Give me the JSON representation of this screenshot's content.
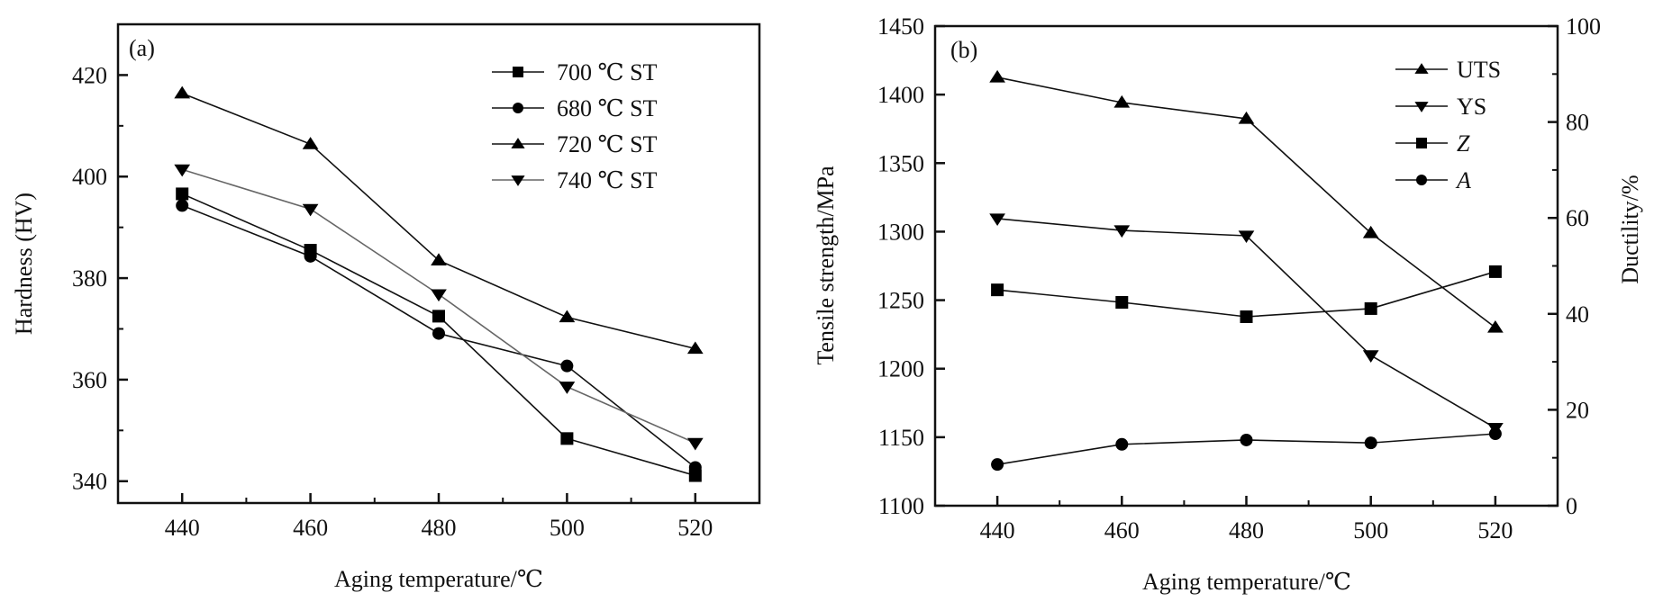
{
  "chart_data": [
    {
      "type": "line",
      "panel_label": "(a)",
      "xlabel": "Aging temperature/℃",
      "ylabel": "Hardness (HV)",
      "xlim": [
        430,
        530
      ],
      "ylim": [
        335.7,
        430
      ],
      "x_ticks": [
        440,
        460,
        480,
        500,
        520
      ],
      "x_tick_labels": [
        "440",
        "460",
        "480",
        "500",
        "520"
      ],
      "x_minor_ticks": [
        450,
        470,
        490,
        510
      ],
      "y_ticks": [
        340,
        360,
        380,
        400,
        420
      ],
      "y_tick_labels": [
        "340",
        "360",
        "380",
        "400",
        "420"
      ],
      "y_minor_ticks": [
        350,
        370,
        390,
        410
      ],
      "grid": false,
      "legend_position": "top-right",
      "x": [
        440,
        460,
        480,
        500,
        520
      ],
      "series": [
        {
          "name": "700 ℃ ST",
          "marker": "square",
          "color": "#111111",
          "values": [
            396.6,
            385.5,
            372.5,
            348.4,
            341.1
          ]
        },
        {
          "name": "680 ℃ ST",
          "marker": "circle",
          "color": "#111111",
          "values": [
            394.3,
            384.3,
            369.1,
            362.7,
            342.7
          ]
        },
        {
          "name": "720 ℃ ST",
          "marker": "triangle-up",
          "color": "#111111",
          "values": [
            416.4,
            406.4,
            383.5,
            372.3,
            366.1
          ]
        },
        {
          "name": "740 ℃ ST",
          "marker": "triangle-down",
          "color": "#666666",
          "values": [
            401.4,
            393.6,
            376.8,
            358.6,
            347.5
          ]
        }
      ]
    },
    {
      "type": "line",
      "panel_label": "(b)",
      "xlabel": "Aging temperature/℃",
      "ylabel": "Tensile strength/MPa",
      "ylabel_right": "Ductility/%",
      "xlim": [
        430,
        530
      ],
      "ylim": [
        1100,
        1450
      ],
      "ylim_right": [
        0,
        100
      ],
      "x_ticks": [
        440,
        460,
        480,
        500,
        520
      ],
      "x_tick_labels": [
        "440",
        "460",
        "480",
        "500",
        "520"
      ],
      "x_minor_ticks": [
        450,
        470,
        490,
        510
      ],
      "y_ticks": [
        1100,
        1150,
        1200,
        1250,
        1300,
        1350,
        1400,
        1450
      ],
      "y_tick_labels": [
        "1100",
        "1150",
        "1200",
        "1250",
        "1300",
        "1350",
        "1400",
        "1450"
      ],
      "y_right_ticks": [
        0,
        20,
        40,
        60,
        80,
        100
      ],
      "y_right_tick_labels": [
        "0",
        "20",
        "40",
        "60",
        "80",
        "100"
      ],
      "y_right_minor_ticks": [
        10,
        30,
        50,
        70,
        90
      ],
      "grid": false,
      "legend_position": "top-right",
      "x": [
        440,
        460,
        480,
        500,
        520
      ],
      "series": [
        {
          "name": "UTS",
          "axis": "left",
          "italic": false,
          "marker": "triangle-up",
          "color": "#111111",
          "values": [
            1412.6,
            1394.2,
            1382.4,
            1299,
            1230
          ]
        },
        {
          "name": "YS",
          "axis": "left",
          "italic": false,
          "marker": "triangle-down",
          "color": "#111111",
          "values": [
            1309.5,
            1300.9,
            1297,
            1209.7,
            1156.7
          ]
        },
        {
          "name": "Z",
          "axis": "right",
          "italic": true,
          "marker": "square",
          "color": "#111111",
          "values": [
            45.0,
            42.4,
            39.4,
            41.1,
            48.8
          ]
        },
        {
          "name": "A",
          "axis": "right",
          "italic": true,
          "marker": "circle",
          "color": "#111111",
          "values": [
            8.6,
            12.8,
            13.7,
            13.1,
            15.0
          ]
        }
      ]
    }
  ]
}
